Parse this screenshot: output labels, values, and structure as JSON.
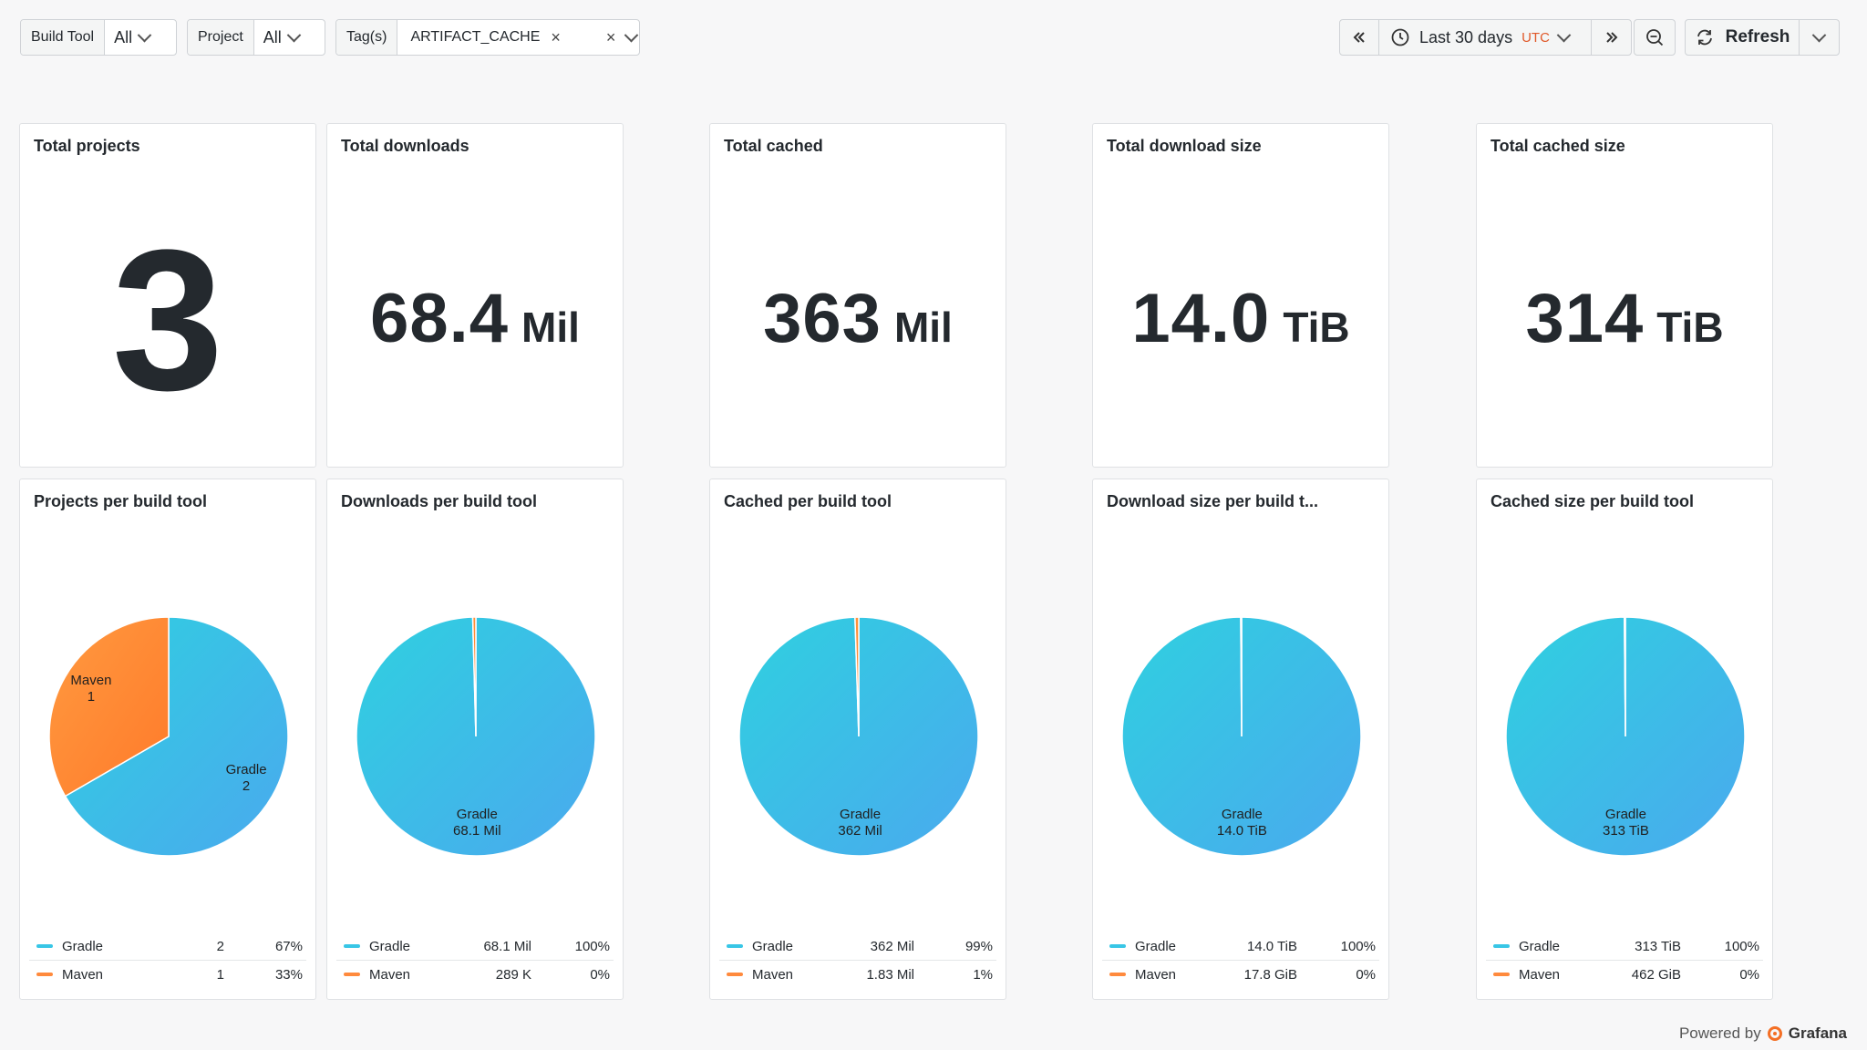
{
  "filters": {
    "build_tool": {
      "label": "Build Tool",
      "value": "All"
    },
    "project": {
      "label": "Project",
      "value": "All"
    },
    "tags": {
      "label": "Tag(s)",
      "chip": "ARTIFACT_CACHE"
    }
  },
  "time_picker": {
    "range": "Last 30 days",
    "timezone": "UTC"
  },
  "refresh": {
    "label": "Refresh"
  },
  "stats": [
    {
      "title": "Total projects",
      "value": "3",
      "unit": ""
    },
    {
      "title": "Total downloads",
      "value": "68.4",
      "unit": "Mil"
    },
    {
      "title": "Total cached",
      "value": "363",
      "unit": "Mil"
    },
    {
      "title": "Total download size",
      "value": "14.0",
      "unit": "TiB"
    },
    {
      "title": "Total cached size",
      "value": "314",
      "unit": "TiB"
    }
  ],
  "pies": [
    {
      "title": "Projects per build tool",
      "series": [
        {
          "name": "Gradle",
          "value": 2,
          "display": "2",
          "pct": "67%"
        },
        {
          "name": "Maven",
          "value": 1,
          "display": "1",
          "pct": "33%"
        }
      ]
    },
    {
      "title": "Downloads per build tool",
      "series": [
        {
          "name": "Gradle",
          "value": 68.1,
          "display": "68.1 Mil",
          "pct": "100%"
        },
        {
          "name": "Maven",
          "value": 0.289,
          "display": "289 K",
          "pct": "0%"
        }
      ]
    },
    {
      "title": "Cached per build tool",
      "series": [
        {
          "name": "Gradle",
          "value": 362,
          "display": "362 Mil",
          "pct": "99%"
        },
        {
          "name": "Maven",
          "value": 1.83,
          "display": "1.83 Mil",
          "pct": "1%"
        }
      ]
    },
    {
      "title": "Download size per build t...",
      "series": [
        {
          "name": "Gradle",
          "value": 14.0,
          "display": "14.0 TiB",
          "pct": "100%"
        },
        {
          "name": "Maven",
          "value": 0.0174,
          "display": "17.8 GiB",
          "pct": "0%"
        }
      ]
    },
    {
      "title": "Cached size per build tool",
      "series": [
        {
          "name": "Gradle",
          "value": 313,
          "display": "313 TiB",
          "pct": "100%"
        },
        {
          "name": "Maven",
          "value": 0.451,
          "display": "462 GiB",
          "pct": "0%"
        }
      ]
    }
  ],
  "colors": {
    "gradle": "#38c6e6",
    "maven": "#ff8a3d"
  },
  "footer": {
    "text": "Powered by",
    "brand": "Grafana"
  }
}
